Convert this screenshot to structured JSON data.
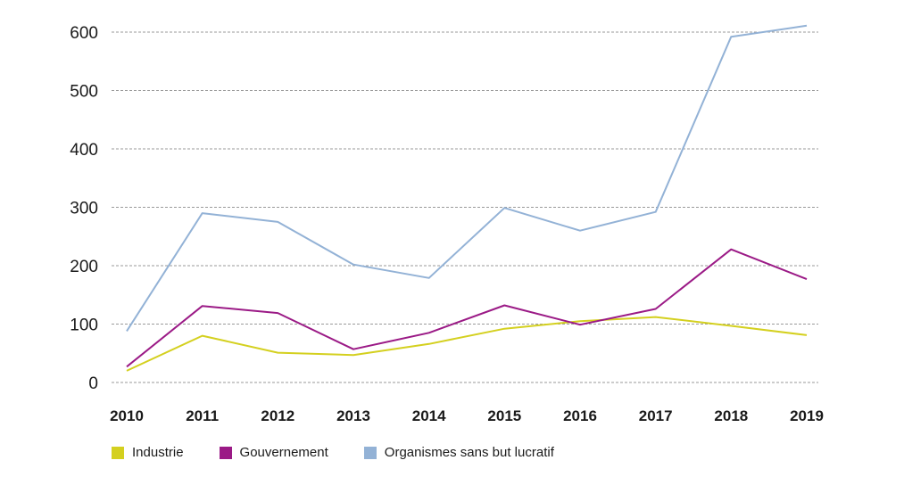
{
  "chart_data": {
    "type": "line",
    "title": "",
    "xlabel": "",
    "ylabel": "",
    "x": [
      "2010",
      "2011",
      "2012",
      "2013",
      "2014",
      "2015",
      "2016",
      "2017",
      "2018",
      "2019"
    ],
    "ylim": [
      0,
      600
    ],
    "yticks": [
      "0",
      "100",
      "200",
      "300",
      "400",
      "500",
      "600"
    ],
    "grid": true,
    "legend_position": "bottom-left",
    "series": [
      {
        "name": "Industrie",
        "color": "#d4d01f",
        "values": [
          20,
          80,
          51,
          47,
          66,
          92,
          105,
          112,
          97,
          81
        ]
      },
      {
        "name": "Gouvernement",
        "color": "#9b1a86",
        "values": [
          27,
          131,
          119,
          57,
          85,
          132,
          99,
          126,
          228,
          177
        ]
      },
      {
        "name": "Organismes sans but lucratif",
        "color": "#93b2d6",
        "values": [
          88,
          290,
          275,
          202,
          179,
          299,
          260,
          292,
          592,
          611
        ]
      }
    ]
  }
}
